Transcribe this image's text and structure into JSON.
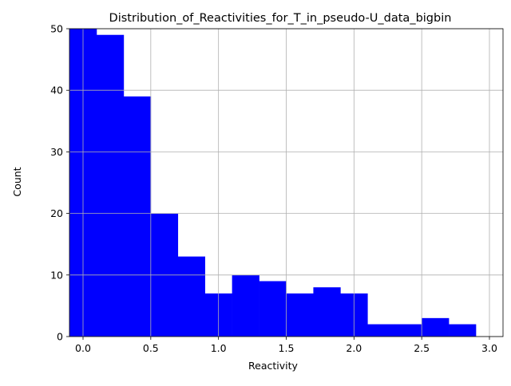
{
  "chart_data": {
    "type": "bar",
    "title": "Distribution_of_Reactivities_for_T_in_pseudo-U_data_bigbin",
    "xlabel": "Reactivity",
    "ylabel": "Count",
    "xlim": [
      -0.2,
      3.0
    ],
    "ylim": [
      0,
      50
    ],
    "x_ticks": [
      {
        "value": 0.0,
        "label": "0.0"
      },
      {
        "value": 0.5,
        "label": "0.5"
      },
      {
        "value": 1.0,
        "label": "1.0"
      },
      {
        "value": 1.5,
        "label": "1.5"
      },
      {
        "value": 2.0,
        "label": "2.0"
      },
      {
        "value": 2.5,
        "label": "2.5"
      },
      {
        "value": 3.0,
        "label": "3.0"
      }
    ],
    "y_ticks": [
      {
        "value": 0,
        "label": "0"
      },
      {
        "value": 10,
        "label": "10"
      },
      {
        "value": 20,
        "label": "20"
      },
      {
        "value": 30,
        "label": "30"
      },
      {
        "value": 40,
        "label": "40"
      },
      {
        "value": 50,
        "label": "50"
      }
    ],
    "grid": true,
    "bar_color": "#0000ff",
    "bins": [
      {
        "start": -0.1,
        "end": 0.1,
        "count": 50
      },
      {
        "start": 0.1,
        "end": 0.3,
        "count": 49
      },
      {
        "start": 0.3,
        "end": 0.5,
        "count": 39
      },
      {
        "start": 0.5,
        "end": 0.7,
        "count": 20
      },
      {
        "start": 0.7,
        "end": 0.9,
        "count": 13
      },
      {
        "start": 0.9,
        "end": 1.1,
        "count": 7
      },
      {
        "start": 1.1,
        "end": 1.3,
        "count": 10
      },
      {
        "start": 1.3,
        "end": 1.5,
        "count": 9
      },
      {
        "start": 1.5,
        "end": 1.7,
        "count": 7
      },
      {
        "start": 1.7,
        "end": 1.9,
        "count": 8
      },
      {
        "start": 1.9,
        "end": 2.1,
        "count": 7
      },
      {
        "start": 2.1,
        "end": 2.3,
        "count": 2
      },
      {
        "start": 2.3,
        "end": 2.5,
        "count": 2
      },
      {
        "start": 2.5,
        "end": 2.7,
        "count": 3
      },
      {
        "start": 2.7,
        "end": 2.9,
        "count": 2
      }
    ]
  }
}
